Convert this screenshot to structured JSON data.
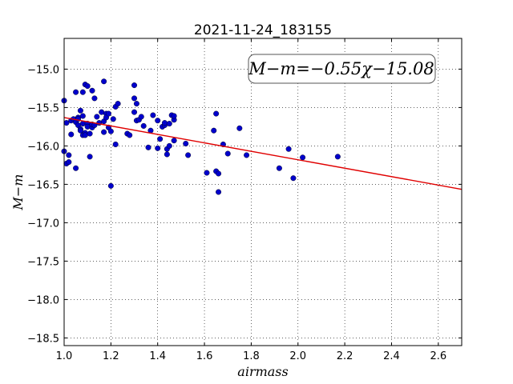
{
  "chart_data": {
    "type": "scatter",
    "title": "2021-11-24_183155",
    "xlabel": "airmass",
    "ylabel": "M−m",
    "xlim": [
      1.0,
      2.7
    ],
    "ylim": [
      -18.6,
      -14.6
    ],
    "y_inverted": true,
    "grid": true,
    "x_ticks": [
      "1.0",
      "1.2",
      "1.4",
      "1.6",
      "1.8",
      "2.0",
      "2.2",
      "2.4",
      "2.6"
    ],
    "x_tick_values": [
      1.0,
      1.2,
      1.4,
      1.6,
      1.8,
      2.0,
      2.2,
      2.4,
      2.6
    ],
    "y_ticks": [
      "−15.0",
      "−15.5",
      "−16.0",
      "−16.5",
      "−17.0",
      "−17.5",
      "−18.0",
      "−18.5"
    ],
    "y_tick_values": [
      -15.0,
      -15.5,
      -16.0,
      -16.5,
      -17.0,
      -17.5,
      -18.0,
      -18.5
    ],
    "annotation": "M−m=−0.55χ−15.08",
    "fit": {
      "slope": -0.55,
      "intercept": -15.08,
      "color": "#e00000"
    },
    "marker_color": "#0000cc",
    "points": [
      [
        1.0,
        -15.41
      ],
      [
        1.0,
        -16.07
      ],
      [
        1.01,
        -15.7
      ],
      [
        1.01,
        -16.23
      ],
      [
        1.02,
        -16.12
      ],
      [
        1.02,
        -16.21
      ],
      [
        1.03,
        -15.67
      ],
      [
        1.03,
        -15.85
      ],
      [
        1.04,
        -15.65
      ],
      [
        1.05,
        -15.69
      ],
      [
        1.05,
        -15.3
      ],
      [
        1.05,
        -16.29
      ],
      [
        1.06,
        -15.63
      ],
      [
        1.06,
        -15.65
      ],
      [
        1.06,
        -15.73
      ],
      [
        1.07,
        -15.54
      ],
      [
        1.07,
        -15.78
      ],
      [
        1.07,
        -15.8
      ],
      [
        1.08,
        -15.61
      ],
      [
        1.08,
        -15.71
      ],
      [
        1.08,
        -15.86
      ],
      [
        1.08,
        -15.3
      ],
      [
        1.09,
        -15.2
      ],
      [
        1.09,
        -15.83
      ],
      [
        1.09,
        -15.86
      ],
      [
        1.1,
        -15.22
      ],
      [
        1.1,
        -15.71
      ],
      [
        1.1,
        -15.75
      ],
      [
        1.11,
        -16.14
      ],
      [
        1.11,
        -15.84
      ],
      [
        1.12,
        -15.28
      ],
      [
        1.12,
        -15.76
      ],
      [
        1.12,
        -15.72
      ],
      [
        1.13,
        -15.38
      ],
      [
        1.13,
        -15.73
      ],
      [
        1.14,
        -15.62
      ],
      [
        1.15,
        -15.7
      ],
      [
        1.16,
        -15.56
      ],
      [
        1.17,
        -15.16
      ],
      [
        1.17,
        -15.68
      ],
      [
        1.17,
        -15.82
      ],
      [
        1.18,
        -15.58
      ],
      [
        1.18,
        -15.63
      ],
      [
        1.19,
        -15.58
      ],
      [
        1.19,
        -15.76
      ],
      [
        1.2,
        -15.81
      ],
      [
        1.2,
        -16.52
      ],
      [
        1.21,
        -15.65
      ],
      [
        1.22,
        -15.49
      ],
      [
        1.22,
        -15.98
      ],
      [
        1.23,
        -15.45
      ],
      [
        1.27,
        -15.84
      ],
      [
        1.28,
        -15.86
      ],
      [
        1.3,
        -15.21
      ],
      [
        1.3,
        -15.38
      ],
      [
        1.3,
        -15.56
      ],
      [
        1.31,
        -15.45
      ],
      [
        1.31,
        -15.67
      ],
      [
        1.32,
        -15.66
      ],
      [
        1.33,
        -15.62
      ],
      [
        1.34,
        -15.74
      ],
      [
        1.36,
        -16.02
      ],
      [
        1.37,
        -15.8
      ],
      [
        1.38,
        -15.6
      ],
      [
        1.4,
        -16.03
      ],
      [
        1.4,
        -15.67
      ],
      [
        1.41,
        -15.91
      ],
      [
        1.42,
        -15.75
      ],
      [
        1.43,
        -15.73
      ],
      [
        1.43,
        -15.7
      ],
      [
        1.44,
        -16.11
      ],
      [
        1.44,
        -16.04
      ],
      [
        1.45,
        -16.0
      ],
      [
        1.45,
        -15.71
      ],
      [
        1.46,
        -15.6
      ],
      [
        1.47,
        -15.66
      ],
      [
        1.47,
        -15.93
      ],
      [
        1.47,
        -15.61
      ],
      [
        1.52,
        -15.97
      ],
      [
        1.53,
        -16.12
      ],
      [
        1.61,
        -16.35
      ],
      [
        1.64,
        -15.8
      ],
      [
        1.65,
        -16.33
      ],
      [
        1.65,
        -15.58
      ],
      [
        1.66,
        -16.36
      ],
      [
        1.66,
        -16.6
      ],
      [
        1.68,
        -15.98
      ],
      [
        1.7,
        -16.1
      ],
      [
        1.75,
        -15.77
      ],
      [
        1.78,
        -16.12
      ],
      [
        1.92,
        -16.29
      ],
      [
        1.96,
        -16.04
      ],
      [
        1.98,
        -16.42
      ],
      [
        2.02,
        -16.15
      ],
      [
        2.17,
        -16.14
      ]
    ]
  }
}
